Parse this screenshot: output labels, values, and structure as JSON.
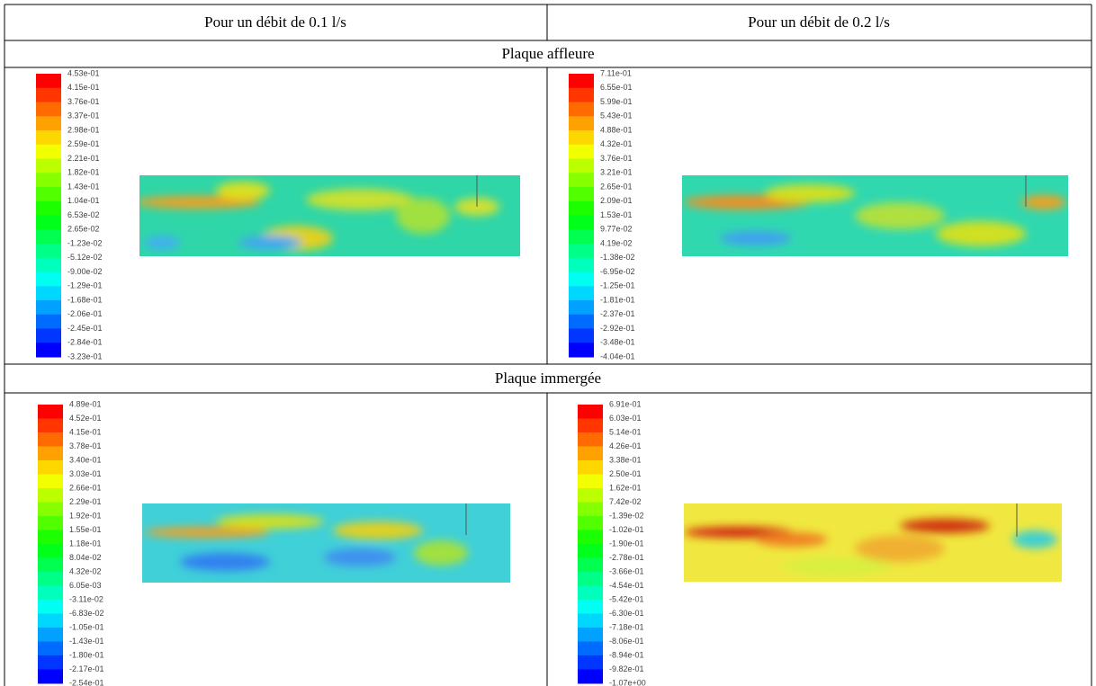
{
  "header": [
    "Pour un débit de 0.1 l/s",
    "Pour un débit de 0.2 l/s"
  ],
  "sections": [
    {
      "title": "Plaque affleure",
      "panels": [
        {
          "legend": [
            "4.53e-01",
            "4.15e-01",
            "3.76e-01",
            "3.37e-01",
            "2.98e-01",
            "2.59e-01",
            "2.21e-01",
            "1.82e-01",
            "1.43e-01",
            "1.04e-01",
            "6.53e-02",
            "2.65e-02",
            "-1.23e-02",
            "-5.12e-02",
            "-9.00e-02",
            "-1.29e-01",
            "-1.68e-01",
            "-2.06e-01",
            "-2.45e-01",
            "-2.84e-01",
            "-3.23e-01"
          ]
        },
        {
          "legend": [
            "7.11e-01",
            "6.55e-01",
            "5.99e-01",
            "5.43e-01",
            "4.88e-01",
            "4.32e-01",
            "3.76e-01",
            "3.21e-01",
            "2.65e-01",
            "2.09e-01",
            "1.53e-01",
            "9.77e-02",
            "4.19e-02",
            "-1.38e-02",
            "-6.95e-02",
            "-1.25e-01",
            "-1.81e-01",
            "-2.37e-01",
            "-2.92e-01",
            "-3.48e-01",
            "-4.04e-01"
          ]
        }
      ]
    },
    {
      "title": "Plaque immergée",
      "panels": [
        {
          "legend": [
            "4.89e-01",
            "4.52e-01",
            "4.15e-01",
            "3.78e-01",
            "3.40e-01",
            "3.03e-01",
            "2.66e-01",
            "2.29e-01",
            "1.92e-01",
            "1.55e-01",
            "1.18e-01",
            "8.04e-02",
            "4.32e-02",
            "6.05e-03",
            "-3.11e-02",
            "-6.83e-02",
            "-1.05e-01",
            "-1.43e-01",
            "-1.80e-01",
            "-2.17e-01",
            "-2.54e-01"
          ]
        },
        {
          "legend": [
            "6.91e-01",
            "6.03e-01",
            "5.14e-01",
            "4.26e-01",
            "3.38e-01",
            "2.50e-01",
            "1.62e-01",
            "7.42e-02",
            "-1.39e-02",
            "-1.02e-01",
            "-1.90e-01",
            "-2.78e-01",
            "-3.66e-01",
            "-4.54e-01",
            "-5.42e-01",
            "-6.30e-01",
            "-7.18e-01",
            "-8.06e-01",
            "-8.94e-01",
            "-9.82e-01",
            "-1.07e+00"
          ]
        }
      ]
    }
  ]
}
